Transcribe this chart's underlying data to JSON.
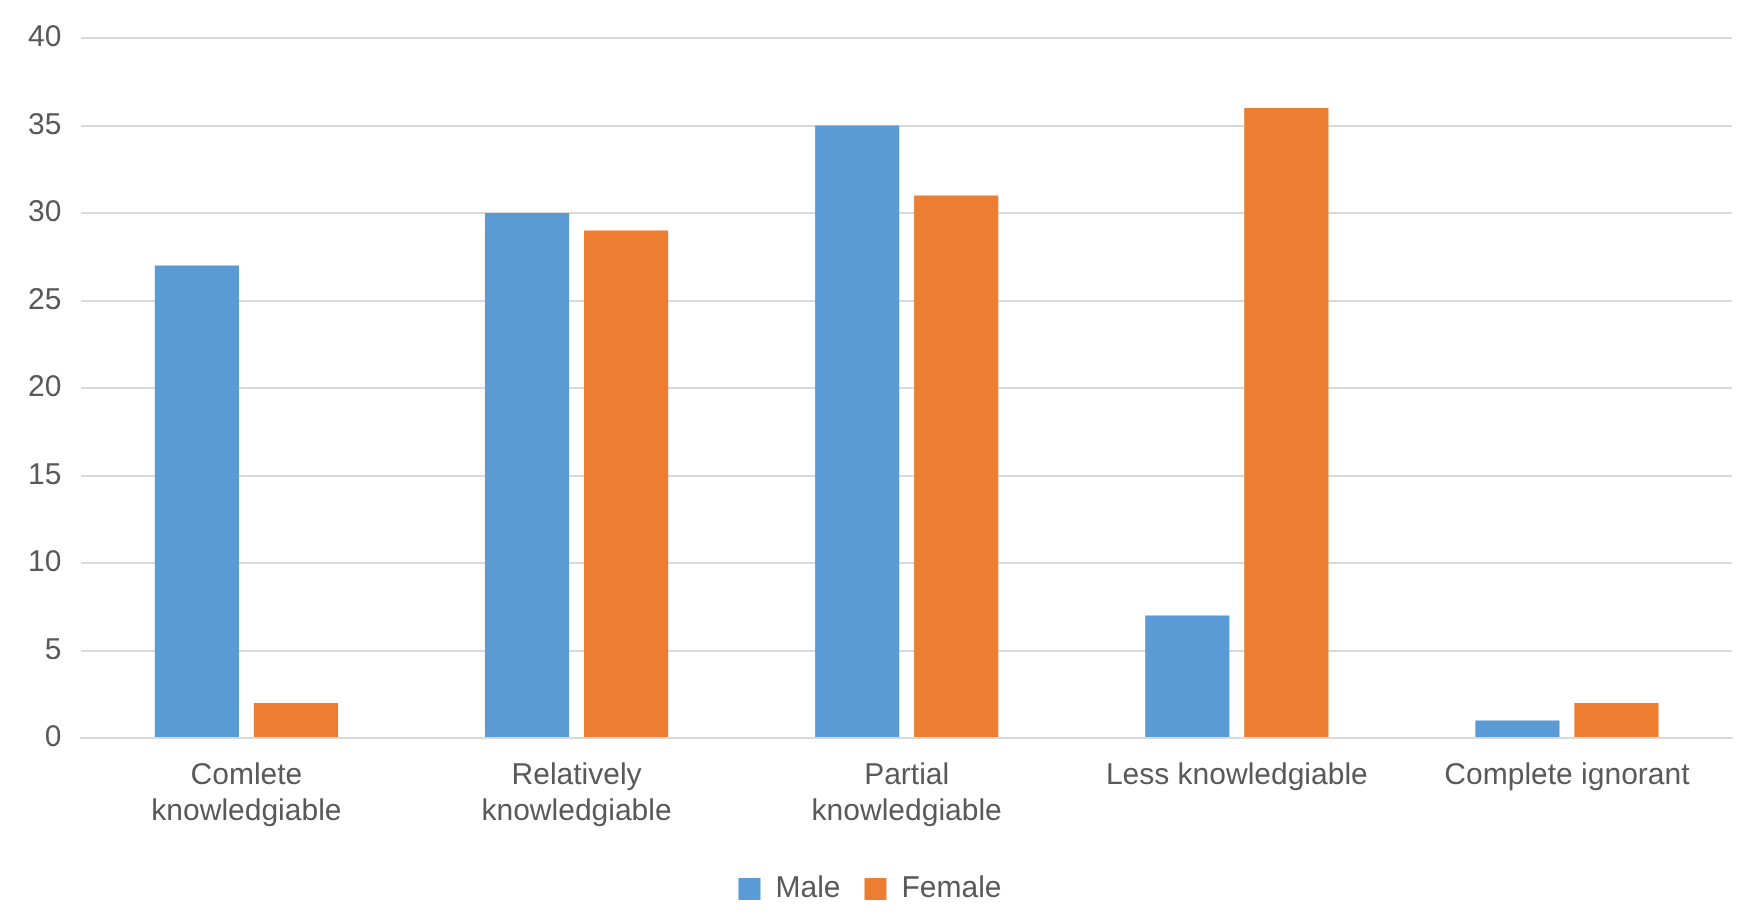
{
  "chart_data": {
    "type": "bar",
    "categories": [
      "Comlete knowledgiable",
      "Relatively knowledgiable",
      "Partial knowledgiable",
      "Less knowledgiable",
      "Complete ignorant"
    ],
    "series": [
      {
        "name": "Male",
        "color": "#5b9bd5",
        "values": [
          27,
          30,
          35,
          7,
          1
        ]
      },
      {
        "name": "Female",
        "color": "#ed7d31",
        "values": [
          2,
          29,
          31,
          36,
          2
        ]
      }
    ],
    "ylim": [
      0,
      40
    ],
    "yticks": [
      0,
      5,
      10,
      15,
      20,
      25,
      30,
      35,
      40
    ],
    "grid": "y",
    "legend": "bottom"
  }
}
